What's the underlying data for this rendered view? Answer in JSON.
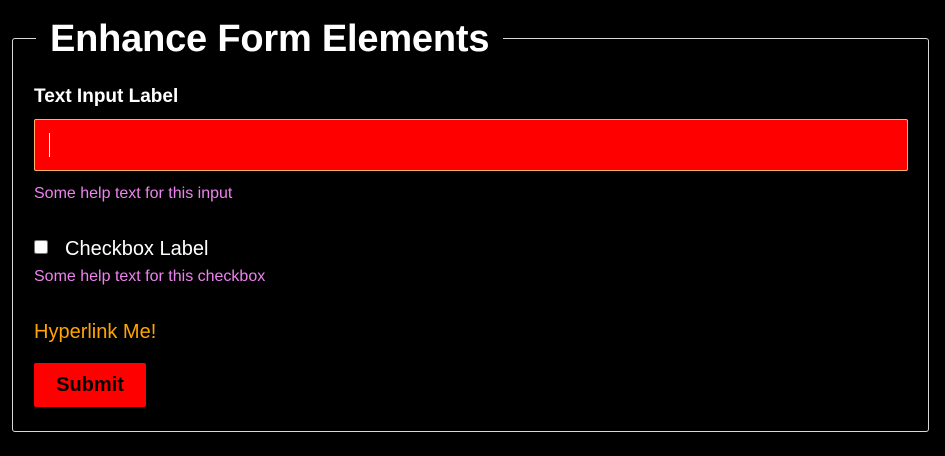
{
  "form": {
    "legend": "Enhance Form Elements",
    "text_input": {
      "label": "Text Input Label",
      "value": "",
      "help": "Some help text for this input"
    },
    "checkbox": {
      "label": "Checkbox Label",
      "checked": false,
      "help": "Some help text for this checkbox"
    },
    "link_text": "Hyperlink Me!",
    "submit_label": "Submit"
  },
  "colors": {
    "background": "#000000",
    "input_bg": "#ff0000",
    "help_text": "#ee82ee",
    "link": "#ffa500",
    "button_bg": "#ff0000"
  }
}
